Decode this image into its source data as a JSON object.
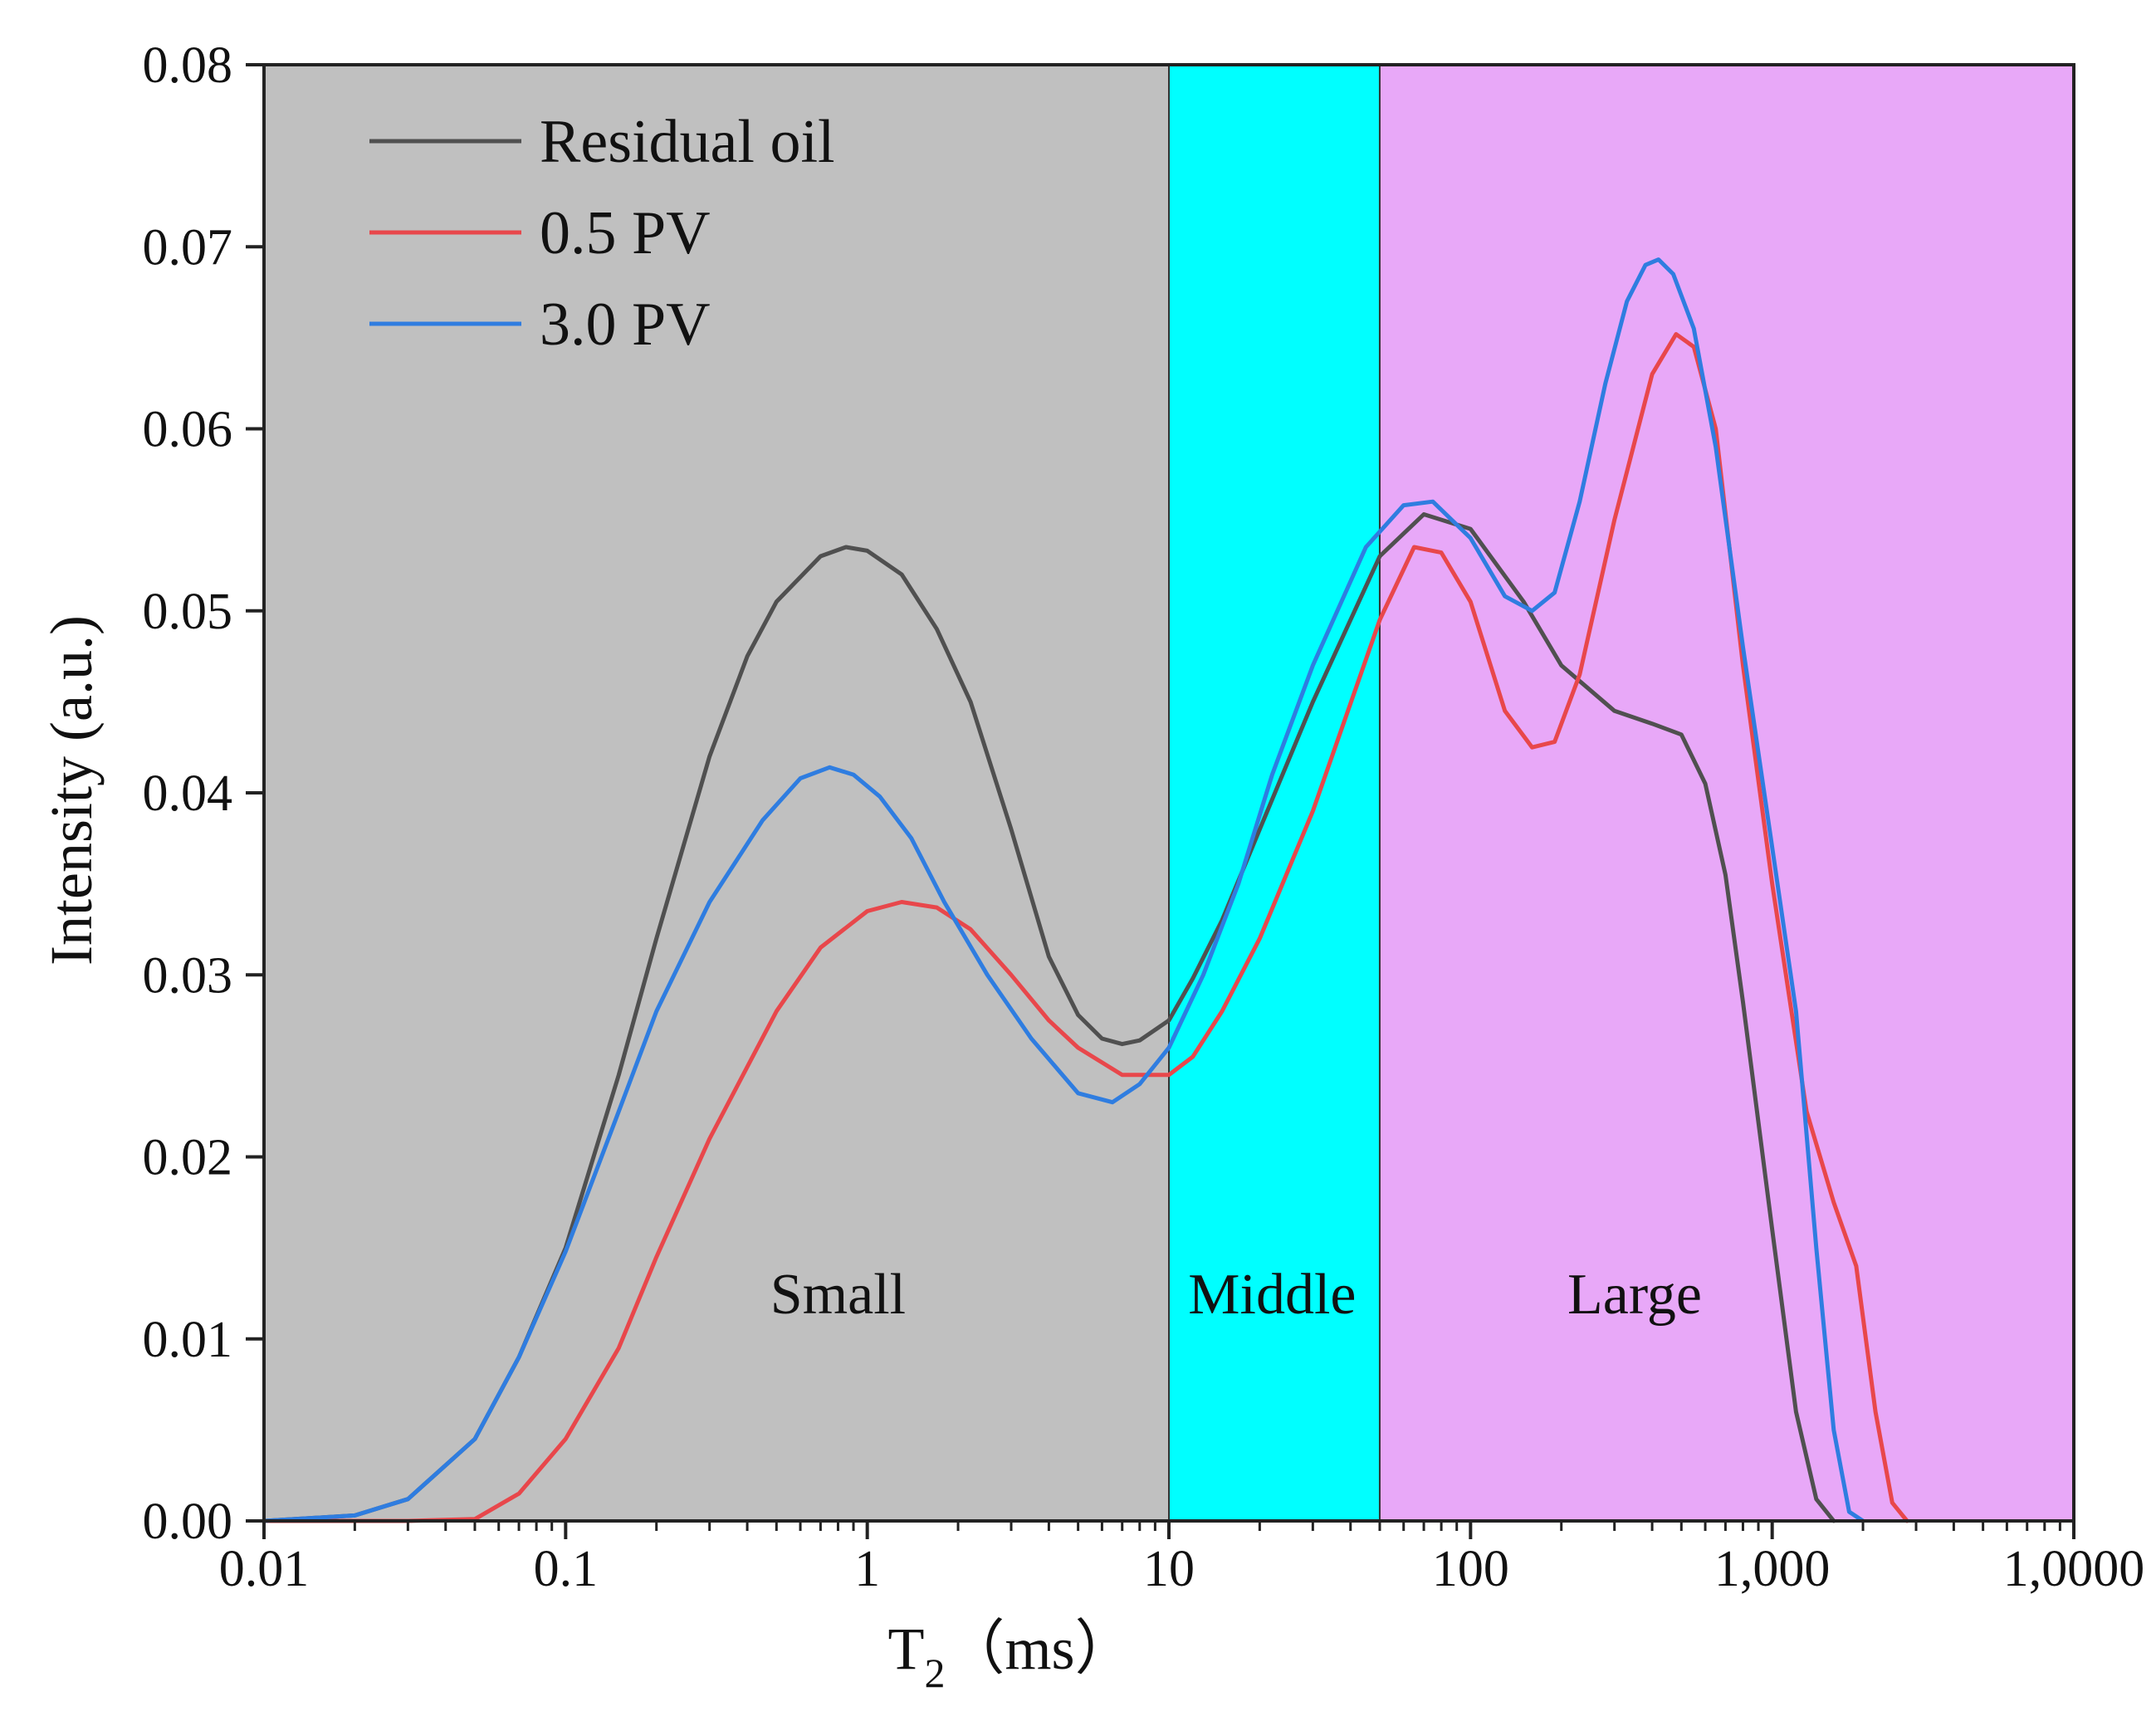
{
  "chart_data": {
    "type": "line",
    "title": "",
    "xlabel": "T",
    "xlabel_subscript": "2",
    "xlabel_unit": "（ms）",
    "ylabel": "Intensity (a.u.)",
    "xscale": "log",
    "xlim": [
      0.01,
      10000
    ],
    "ylim": [
      0,
      0.08
    ],
    "xticks": [
      {
        "value": 0.01,
        "label": "0.01"
      },
      {
        "value": 0.1,
        "label": "0.1"
      },
      {
        "value": 1,
        "label": "1"
      },
      {
        "value": 10,
        "label": "10"
      },
      {
        "value": 100,
        "label": "100"
      },
      {
        "value": 1000,
        "label": "1,000"
      },
      {
        "value": 10000,
        "label": "1,0000"
      }
    ],
    "yticks": [
      {
        "value": 0,
        "label": "0.00"
      },
      {
        "value": 0.01,
        "label": "0.01"
      },
      {
        "value": 0.02,
        "label": "0.02"
      },
      {
        "value": 0.03,
        "label": "0.03"
      },
      {
        "value": 0.04,
        "label": "0.04"
      },
      {
        "value": 0.05,
        "label": "0.05"
      },
      {
        "value": 0.06,
        "label": "0.06"
      },
      {
        "value": 0.07,
        "label": "0.07"
      },
      {
        "value": 0.08,
        "label": "0.08"
      }
    ],
    "regions": [
      {
        "name": "Small",
        "label": "Small",
        "x_from": 0.01,
        "x_to": 10,
        "label_x": 0.8,
        "label_y": 0.0125,
        "color": "#c0c0c0"
      },
      {
        "name": "Middle",
        "label": "Middle",
        "x_from": 10,
        "x_to": 50,
        "label_x": 22,
        "label_y": 0.0125,
        "color": "#00ffff"
      },
      {
        "name": "Large",
        "label": "Large",
        "x_from": 50,
        "x_to": 10000,
        "label_x": 350,
        "label_y": 0.0125,
        "color": "#e8a8f8"
      }
    ],
    "legend_position": "top-left",
    "series": [
      {
        "name": "Residual oil",
        "color": "#505050",
        "x": [
          0.01,
          0.02,
          0.03,
          0.05,
          0.07,
          0.1,
          0.15,
          0.2,
          0.3,
          0.4,
          0.5,
          0.7,
          0.85,
          1,
          1.3,
          1.7,
          2.2,
          3,
          4,
          5,
          6,
          7,
          8,
          10,
          12,
          15,
          20,
          30,
          50,
          70,
          100,
          150,
          200,
          300,
          400,
          500,
          600,
          700,
          800,
          1000,
          1200,
          1400,
          1600
        ],
        "y": [
          0,
          0.0003,
          0.0012,
          0.0045,
          0.009,
          0.015,
          0.0245,
          0.032,
          0.042,
          0.0475,
          0.0505,
          0.053,
          0.0535,
          0.0533,
          0.052,
          0.049,
          0.045,
          0.038,
          0.031,
          0.0278,
          0.0265,
          0.0262,
          0.0264,
          0.0275,
          0.0298,
          0.033,
          0.038,
          0.045,
          0.053,
          0.0553,
          0.0545,
          0.0505,
          0.047,
          0.0445,
          0.0438,
          0.0432,
          0.0405,
          0.0355,
          0.0285,
          0.016,
          0.006,
          0.0012,
          0
        ]
      },
      {
        "name": "0.5 PV",
        "color": "#e8474b",
        "x": [
          0.01,
          0.03,
          0.05,
          0.07,
          0.1,
          0.15,
          0.2,
          0.3,
          0.5,
          0.7,
          1,
          1.3,
          1.7,
          2.2,
          3,
          4,
          5,
          7,
          10,
          12,
          15,
          20,
          30,
          50,
          65,
          80,
          100,
          130,
          160,
          190,
          230,
          300,
          400,
          480,
          550,
          650,
          800,
          1000,
          1300,
          1600,
          1900,
          2200,
          2500,
          2800
        ],
        "y": [
          0,
          0,
          0.0001,
          0.0015,
          0.0045,
          0.0095,
          0.0145,
          0.021,
          0.028,
          0.0315,
          0.0335,
          0.034,
          0.0337,
          0.0325,
          0.03,
          0.0275,
          0.026,
          0.0245,
          0.0245,
          0.0255,
          0.028,
          0.032,
          0.039,
          0.0495,
          0.0535,
          0.0532,
          0.0505,
          0.0445,
          0.0425,
          0.0428,
          0.0465,
          0.055,
          0.063,
          0.0652,
          0.0645,
          0.06,
          0.047,
          0.035,
          0.0225,
          0.0175,
          0.014,
          0.006,
          0.001,
          0
        ]
      },
      {
        "name": "3.0 PV",
        "color": "#2f7de0",
        "x": [
          0.01,
          0.02,
          0.03,
          0.05,
          0.07,
          0.1,
          0.15,
          0.2,
          0.3,
          0.45,
          0.6,
          0.75,
          0.9,
          1.1,
          1.4,
          1.8,
          2.5,
          3.5,
          5,
          6.5,
          8,
          10,
          13,
          17,
          22,
          30,
          45,
          60,
          75,
          100,
          130,
          160,
          190,
          230,
          280,
          330,
          380,
          420,
          470,
          550,
          650,
          800,
          1000,
          1200,
          1400,
          1600,
          1800,
          2000
        ],
        "y": [
          0,
          0.0003,
          0.0012,
          0.0045,
          0.009,
          0.0148,
          0.0225,
          0.028,
          0.034,
          0.0385,
          0.0408,
          0.0414,
          0.041,
          0.0398,
          0.0375,
          0.034,
          0.03,
          0.0265,
          0.0235,
          0.023,
          0.024,
          0.026,
          0.03,
          0.035,
          0.041,
          0.047,
          0.0535,
          0.0558,
          0.056,
          0.054,
          0.0508,
          0.05,
          0.051,
          0.056,
          0.0625,
          0.067,
          0.069,
          0.0693,
          0.0685,
          0.0655,
          0.059,
          0.048,
          0.037,
          0.028,
          0.015,
          0.005,
          0.0005,
          0
        ]
      }
    ]
  }
}
